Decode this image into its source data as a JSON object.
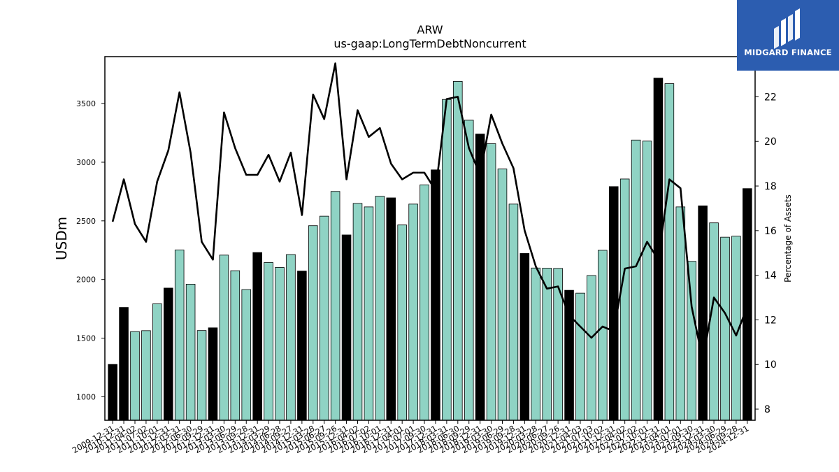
{
  "chart_data": {
    "type": "bar",
    "title": "ARW",
    "subtitle": "us-gaap:LongTermDebtNoncurrent",
    "ylabel": "USDm",
    "y2label": "Percentage of Assets",
    "ylim": [
      800,
      3900
    ],
    "y2lim": [
      7.5,
      23.8
    ],
    "yticks": [
      1000,
      1500,
      2000,
      2500,
      3000,
      3500
    ],
    "y2ticks": [
      8,
      10,
      12,
      14,
      16,
      18,
      20,
      22
    ],
    "grid": false,
    "categories": [
      "2009-12-31",
      "2010-12-31",
      "2011-04-02",
      "2011-07-02",
      "2011-10-01",
      "2011-12-31",
      "2012-03-31",
      "2012-06-30",
      "2012-09-29",
      "2012-12-31",
      "2013-03-30",
      "2013-06-29",
      "2013-09-28",
      "2013-12-31",
      "2014-03-29",
      "2014-06-28",
      "2014-09-27",
      "2014-12-31",
      "2015-03-28",
      "2015-06-27",
      "2015-09-26",
      "2015-12-31",
      "2016-04-02",
      "2016-07-02",
      "2016-10-01",
      "2016-12-31",
      "2017-04-01",
      "2017-07-01",
      "2017-09-30",
      "2017-12-31",
      "2018-03-31",
      "2018-06-30",
      "2018-09-29",
      "2018-12-31",
      "2019-03-30",
      "2019-06-29",
      "2019-09-28",
      "2019-12-31",
      "2020-03-28",
      "2020-06-27",
      "2020-09-26",
      "2020-12-31",
      "2021-04-03",
      "2021-07-03",
      "2021-10-02",
      "2021-12-31",
      "2022-04-02",
      "2022-07-02",
      "2022-10-01",
      "2022-12-31",
      "2023-04-01",
      "2023-07-01",
      "2023-09-30",
      "2023-12-31",
      "2024-03-30",
      "2024-06-29",
      "2024-09-28",
      "2024-12-31"
    ],
    "series": [
      {
        "type": "bar",
        "values": [
          1276,
          1762,
          1556,
          1564,
          1793,
          1927,
          2252,
          1960,
          1565,
          1588,
          2208,
          2075,
          1914,
          2230,
          2145,
          2103,
          2213,
          2072,
          2459,
          2540,
          2751,
          2380,
          2649,
          2619,
          2710,
          2696,
          2465,
          2643,
          2807,
          2935,
          3535,
          3689,
          3358,
          3240,
          3158,
          2942,
          2643,
          2222,
          2098,
          2097,
          2095,
          1908,
          1884,
          2034,
          2249,
          2792,
          2857,
          3189,
          3180,
          3717,
          3670,
          2619,
          2155,
          2628,
          2483,
          2361,
          2369,
          2775
        ],
        "year_end_color": "#000000",
        "quarter_color": "#8fd3c4"
      },
      {
        "type": "line",
        "color": "#000000",
        "values": [
          16.4,
          18.3,
          16.3,
          15.5,
          18.2,
          19.6,
          22.2,
          19.5,
          15.5,
          14.7,
          21.3,
          19.7,
          18.5,
          18.5,
          19.4,
          18.2,
          19.5,
          16.7,
          22.1,
          21.0,
          23.5,
          18.3,
          21.4,
          20.2,
          20.6,
          19.0,
          18.3,
          18.6,
          18.6,
          17.8,
          21.9,
          22.0,
          19.7,
          18.5,
          21.2,
          19.9,
          18.8,
          16.0,
          14.4,
          13.4,
          13.5,
          12.2,
          11.7,
          11.2,
          11.7,
          11.5,
          14.3,
          14.4,
          15.5,
          14.7,
          18.3,
          17.9,
          12.6,
          10.2,
          13.0,
          12.3,
          11.3,
          12.6
        ]
      }
    ]
  },
  "logo": {
    "text": "MIDGARD FINANCE",
    "bg": "#2c5db0"
  }
}
